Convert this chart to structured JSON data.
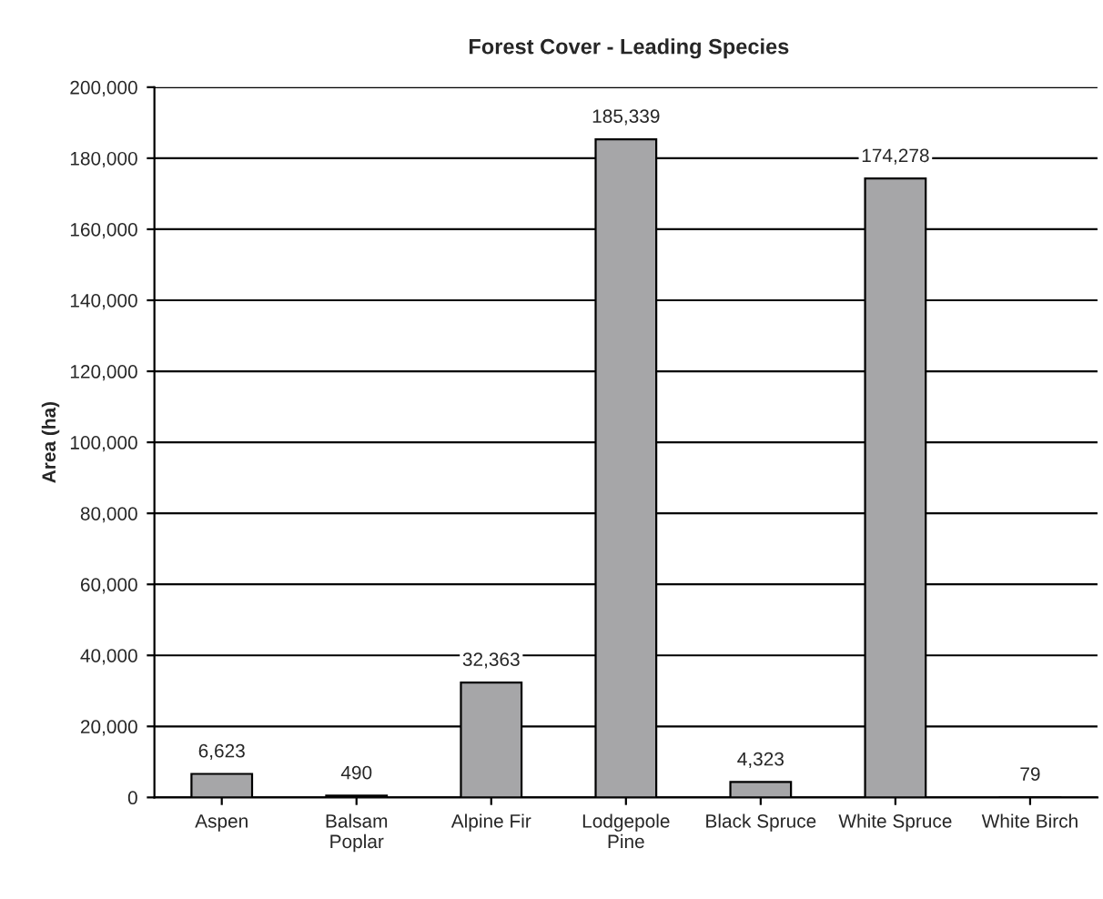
{
  "chart_data": {
    "type": "bar",
    "title": "Forest Cover - Leading Species",
    "ylabel": "Area (ha)",
    "categories": [
      "Aspen",
      "Balsam\nPoplar",
      "Alpine Fir",
      "Lodgepole\nPine",
      "Black Spruce",
      "White Spruce",
      "White Birch"
    ],
    "values": [
      6623,
      490,
      32363,
      185339,
      4323,
      174278,
      79
    ],
    "value_labels": [
      "6,623",
      "490",
      "32,363",
      "185,339",
      "4,323",
      "174,278",
      "79"
    ],
    "color": "#a6a6a8",
    "ylim": [
      0,
      200000
    ],
    "yticks": [
      {
        "value": 0,
        "label": "0"
      },
      {
        "value": 20000,
        "label": "20,000"
      },
      {
        "value": 40000,
        "label": "40,000"
      },
      {
        "value": 60000,
        "label": "60,000"
      },
      {
        "value": 80000,
        "label": "80,000"
      },
      {
        "value": 100000,
        "label": "100,000"
      },
      {
        "value": 120000,
        "label": "120,000"
      },
      {
        "value": 140000,
        "label": "140,000"
      },
      {
        "value": 160000,
        "label": "160,000"
      },
      {
        "value": 180000,
        "label": "180,000"
      },
      {
        "value": 200000,
        "label": "200,000"
      }
    ],
    "grid": "y",
    "legend": false
  }
}
